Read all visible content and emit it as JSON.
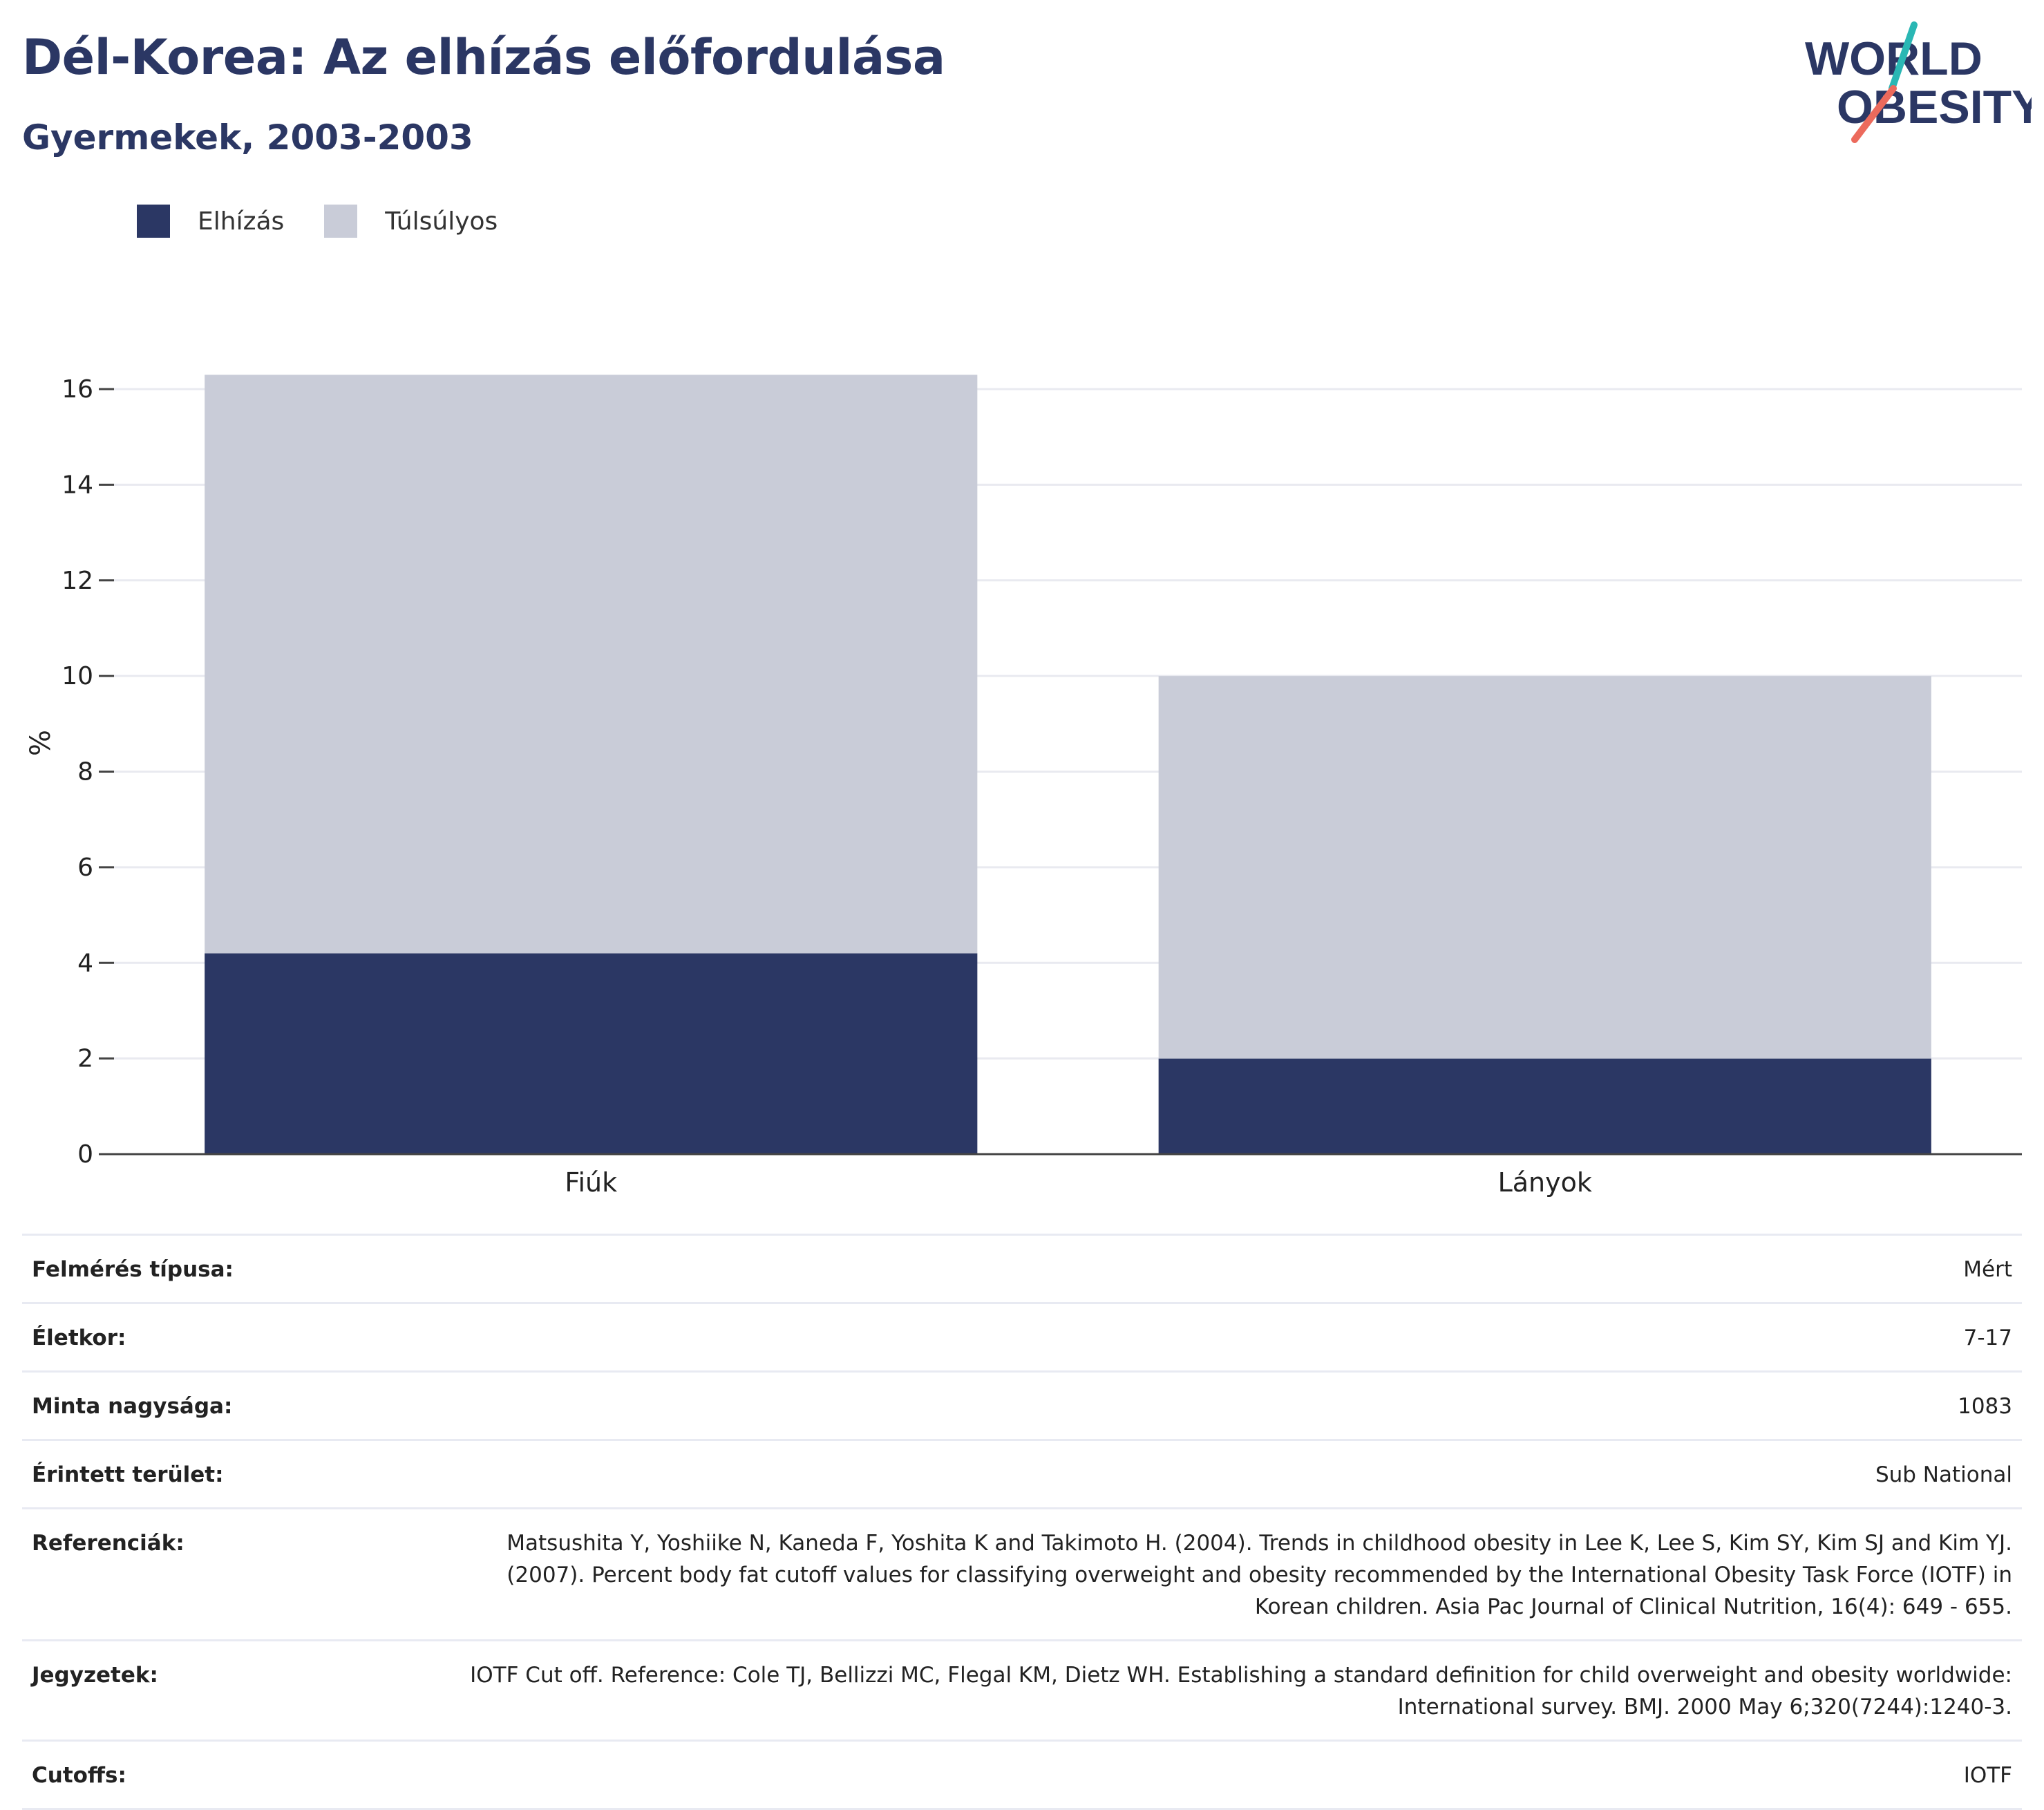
{
  "header": {
    "title": "Dél-Korea: Az elhízás előfordulása",
    "subtitle": "Gyermekek, 2003-2003"
  },
  "logo": {
    "line1": "WORLD",
    "line2": "OBESITY",
    "colors": {
      "text": "#2b3764",
      "teal": "#2ab7b4",
      "coral": "#ec6a5c"
    }
  },
  "legend": [
    {
      "label": "Elhízás",
      "color": "#2b3764"
    },
    {
      "label": "Túlsúlyos",
      "color": "#c9ccd8"
    }
  ],
  "chart_data": {
    "type": "bar",
    "stacked": true,
    "categories": [
      "Fiúk",
      "Lányok"
    ],
    "series": [
      {
        "name": "Elhízás",
        "values": [
          4.2,
          2.0
        ],
        "color": "#2b3764"
      },
      {
        "name": "Túlsúlyos",
        "values": [
          12.1,
          8.0
        ],
        "color": "#c9ccd8"
      }
    ],
    "ylabel": "%",
    "ylim": [
      0,
      17.2
    ],
    "yticks": [
      0,
      2,
      4,
      6,
      8,
      10,
      12,
      14,
      16
    ],
    "grid": true,
    "legend_position": "top-left"
  },
  "details": [
    {
      "label": "Felmérés típusa:",
      "value": "Mért"
    },
    {
      "label": "Életkor:",
      "value": "7-17"
    },
    {
      "label": "Minta nagysága:",
      "value": "1083"
    },
    {
      "label": "Érintett terület:",
      "value": "Sub National"
    },
    {
      "label": "Referenciák:",
      "value": "Matsushita Y, Yoshiike N, Kaneda F, Yoshita K and Takimoto H. (2004). Trends in childhood obesity in Lee K, Lee S, Kim SY, Kim SJ and Kim YJ. (2007). Percent body fat cutoff values for classifying overweight and obesity recommended by the International Obesity Task Force (IOTF) in Korean children. Asia Pac Journal of Clinical Nutrition, 16(4): 649 - 655."
    },
    {
      "label": "Jegyzetek:",
      "value": "IOTF Cut off. Reference: Cole TJ, Bellizzi MC, Flegal KM, Dietz WH. Establishing a standard definition for child overweight and obesity worldwide: International survey. BMJ. 2000 May 6;320(7244):1240-3."
    },
    {
      "label": "Cutoffs:",
      "value": "IOTF"
    }
  ]
}
